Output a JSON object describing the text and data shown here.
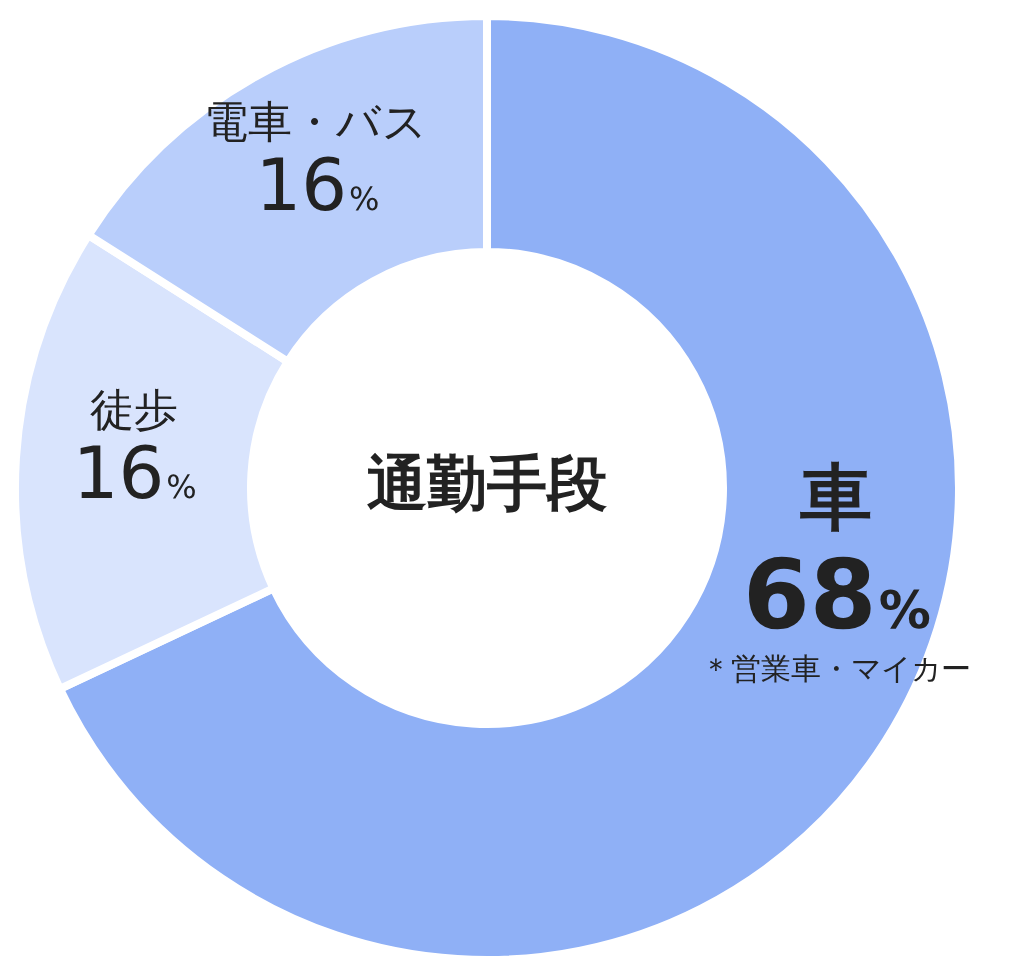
{
  "chart_data": {
    "type": "donut",
    "title": "通勤手段",
    "categories": [
      "車",
      "徒歩",
      "電車・バス"
    ],
    "values": [
      68,
      16,
      16
    ],
    "value_labels": [
      "68%",
      "16%",
      "16%"
    ],
    "colors": [
      "#8fb0f6",
      "#d9e4fd",
      "#b9cefb"
    ],
    "legend": false,
    "annotations": [
      "＊営業車・マイカー"
    ]
  }
}
